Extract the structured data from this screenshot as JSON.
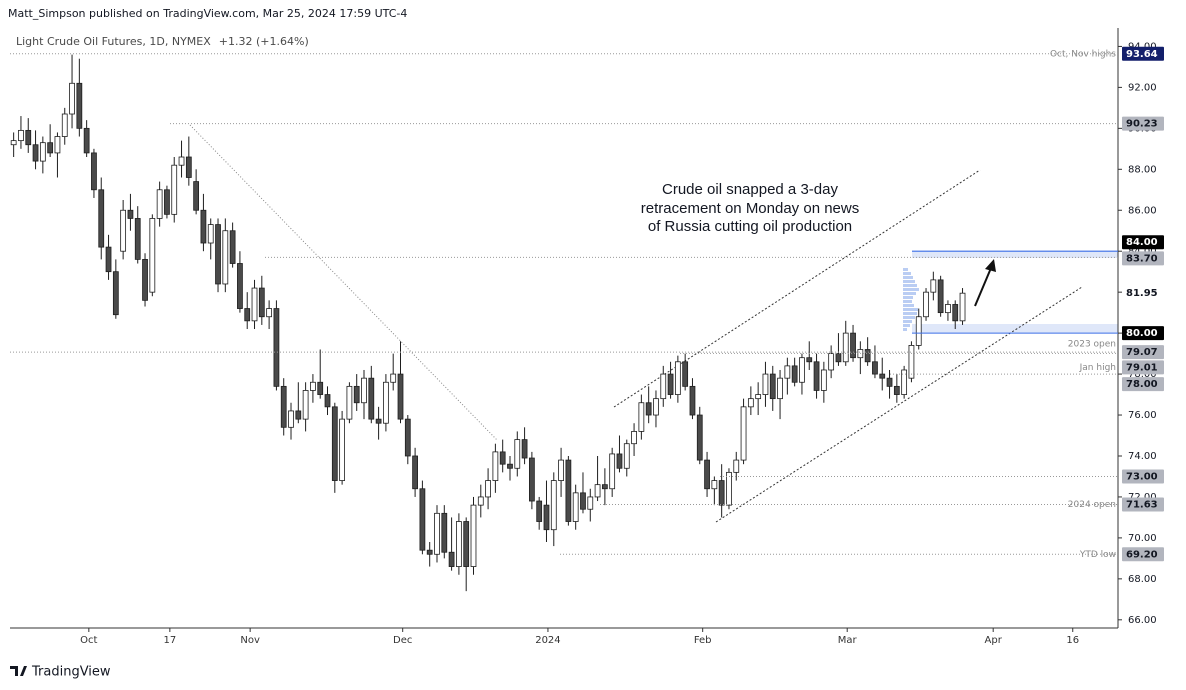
{
  "header": "Matt_Simpson published on TradingView.com, Mar 25, 2024 17:59 UTC-4",
  "footer": "TradingView",
  "chart_data": {
    "type": "candlestick",
    "title": "Light Crude Oil Futures, 1D, NYMEX",
    "change": "+1.32 (+1.64%)",
    "annotation": [
      "Crude oil snapped a 3-day",
      "retracement on Monday on news",
      "of Russia cutting oil production"
    ],
    "up_color": "#ffffff",
    "down_color": "#4a4a4a",
    "border_color": "#1e1e1e",
    "ylim": [
      65.6,
      94.9
    ],
    "yticks": [
      {
        "value": 66,
        "label": "66.00"
      },
      {
        "value": 68,
        "label": "68.00"
      },
      {
        "value": 70,
        "label": "70.00"
      },
      {
        "value": 72,
        "label": "72.00"
      },
      {
        "value": 74,
        "label": "74.00"
      },
      {
        "value": 76,
        "label": "76.00"
      },
      {
        "value": 78,
        "label": "78.00"
      },
      {
        "value": 80,
        "label": "80.00"
      },
      {
        "value": 82,
        "label": "82.00"
      },
      {
        "value": 84,
        "label": "84.00"
      },
      {
        "value": 86,
        "label": "86.00"
      },
      {
        "value": 88,
        "label": "88.00"
      },
      {
        "value": 90,
        "label": "90.00"
      },
      {
        "value": 92,
        "label": "92.00"
      },
      {
        "value": 94,
        "label": "94.00"
      }
    ],
    "xlim": [
      -0.5,
      151.3
    ],
    "xticks": [
      {
        "value": 10.3,
        "label": "Oct"
      },
      {
        "value": 21.4,
        "label": "17"
      },
      {
        "value": 32.4,
        "label": "Nov"
      },
      {
        "value": 53.3,
        "label": "Dec"
      },
      {
        "value": 73.2,
        "label": "2024"
      },
      {
        "value": 94.4,
        "label": "Feb"
      },
      {
        "value": 114.2,
        "label": "Mar"
      },
      {
        "value": 134.2,
        "label": "Apr"
      },
      {
        "value": 145.1,
        "label": "16"
      }
    ],
    "levels": [
      {
        "value": 93.64,
        "label": "93.64",
        "note": "Oct, Nov highs",
        "color": "#131f6b"
      },
      {
        "value": 90.23,
        "label": "90.23",
        "color": "#b2b5be"
      },
      {
        "value": 84.0,
        "label": "84.00",
        "color": "#000000"
      },
      {
        "value": 83.7,
        "label": "83.70",
        "color": "#b2b5be"
      },
      {
        "value": 81.95,
        "label": "81.95",
        "color": "#ffffff"
      },
      {
        "value": 80.0,
        "label": "80.00",
        "color": "#000000"
      },
      {
        "value": 79.07,
        "label": "79.07",
        "note": "2023 open",
        "color": "#b2b5be"
      },
      {
        "value": 79.01,
        "label": "79.01",
        "note": "Jan high",
        "color": "#b2b5be"
      },
      {
        "value": 78.0,
        "label": "78.00",
        "color": "#b2b5be"
      },
      {
        "value": 73.0,
        "label": "73.00",
        "color": "#b2b5be"
      },
      {
        "value": 71.63,
        "label": "71.63",
        "note": "2024 open",
        "color": "#b2b5be"
      },
      {
        "value": 69.2,
        "label": "69.20",
        "note": "YTD low",
        "color": "#b2b5be"
      }
    ],
    "ohlc": [
      [
        89.2,
        89.8,
        88.6,
        89.4
      ],
      [
        89.4,
        90.6,
        89.0,
        89.9
      ],
      [
        89.9,
        90.5,
        88.8,
        89.2
      ],
      [
        89.2,
        89.9,
        88.0,
        88.4
      ],
      [
        88.4,
        89.6,
        87.8,
        89.3
      ],
      [
        89.3,
        90.2,
        88.6,
        88.8
      ],
      [
        88.8,
        89.8,
        87.6,
        89.6
      ],
      [
        89.6,
        91.0,
        89.2,
        90.7
      ],
      [
        90.7,
        93.6,
        90.0,
        92.2
      ],
      [
        92.2,
        93.4,
        89.6,
        90.0
      ],
      [
        90.0,
        90.4,
        88.6,
        88.8
      ],
      [
        88.8,
        89.0,
        86.6,
        87.0
      ],
      [
        87.0,
        87.6,
        83.6,
        84.2
      ],
      [
        84.2,
        84.8,
        82.6,
        83.0
      ],
      [
        83.0,
        83.6,
        80.7,
        80.9
      ],
      [
        84.0,
        86.5,
        83.6,
        86.0
      ],
      [
        86.0,
        86.8,
        85.0,
        85.6
      ],
      [
        85.6,
        86.2,
        83.4,
        83.6
      ],
      [
        83.6,
        83.9,
        81.3,
        81.6
      ],
      [
        82.0,
        85.8,
        81.8,
        85.6
      ],
      [
        85.6,
        87.4,
        85.2,
        87.0
      ],
      [
        87.0,
        87.2,
        85.6,
        85.8
      ],
      [
        85.8,
        88.6,
        85.4,
        88.2
      ],
      [
        88.2,
        89.4,
        87.6,
        88.6
      ],
      [
        88.6,
        89.6,
        87.2,
        87.6
      ],
      [
        87.4,
        88.0,
        85.8,
        86.0
      ],
      [
        86.0,
        86.8,
        84.0,
        84.4
      ],
      [
        84.4,
        85.6,
        83.6,
        85.3
      ],
      [
        85.3,
        85.6,
        82.0,
        82.4
      ],
      [
        82.4,
        85.6,
        82.0,
        85.0
      ],
      [
        85.0,
        85.4,
        83.2,
        83.4
      ],
      [
        83.4,
        84.0,
        81.0,
        81.2
      ],
      [
        81.2,
        82.0,
        80.2,
        80.6
      ],
      [
        80.6,
        82.6,
        80.2,
        82.2
      ],
      [
        82.2,
        82.8,
        80.4,
        80.8
      ],
      [
        80.8,
        81.6,
        80.2,
        81.2
      ],
      [
        81.2,
        81.6,
        77.2,
        77.4
      ],
      [
        77.4,
        77.8,
        75.0,
        75.4
      ],
      [
        75.4,
        76.6,
        74.8,
        76.2
      ],
      [
        76.2,
        77.6,
        75.6,
        75.8
      ],
      [
        75.8,
        77.6,
        75.2,
        77.2
      ],
      [
        77.2,
        78.0,
        76.6,
        77.6
      ],
      [
        77.6,
        79.2,
        76.8,
        77.0
      ],
      [
        77.0,
        77.4,
        76.0,
        76.4
      ],
      [
        76.4,
        76.6,
        72.2,
        72.8
      ],
      [
        72.8,
        76.2,
        72.6,
        75.8
      ],
      [
        75.8,
        77.6,
        75.6,
        77.4
      ],
      [
        77.4,
        78.0,
        76.2,
        76.6
      ],
      [
        76.6,
        78.2,
        75.8,
        77.8
      ],
      [
        77.8,
        78.4,
        75.6,
        75.8
      ],
      [
        75.8,
        76.4,
        74.8,
        75.6
      ],
      [
        75.6,
        78.0,
        75.2,
        77.6
      ],
      [
        77.6,
        79.0,
        77.2,
        78.0
      ],
      [
        78.0,
        79.6,
        75.6,
        75.8
      ],
      [
        75.8,
        76.0,
        73.6,
        74.0
      ],
      [
        74.0,
        74.4,
        72.0,
        72.4
      ],
      [
        72.4,
        72.8,
        69.2,
        69.4
      ],
      [
        69.4,
        69.8,
        68.6,
        69.2
      ],
      [
        69.2,
        71.6,
        68.8,
        71.2
      ],
      [
        71.2,
        71.6,
        69.0,
        69.3
      ],
      [
        69.3,
        71.0,
        68.4,
        68.6
      ],
      [
        68.6,
        71.2,
        68.2,
        70.8
      ],
      [
        70.8,
        71.0,
        67.4,
        68.6
      ],
      [
        68.6,
        72.0,
        68.2,
        71.6
      ],
      [
        71.6,
        72.6,
        71.0,
        72.0
      ],
      [
        72.0,
        73.4,
        71.4,
        72.8
      ],
      [
        72.8,
        74.6,
        72.2,
        74.2
      ],
      [
        74.2,
        74.8,
        73.2,
        73.6
      ],
      [
        73.6,
        74.0,
        72.8,
        73.4
      ],
      [
        73.4,
        75.2,
        73.0,
        74.8
      ],
      [
        74.8,
        75.4,
        73.6,
        73.9
      ],
      [
        73.9,
        74.2,
        71.4,
        71.8
      ],
      [
        71.8,
        72.0,
        70.4,
        70.8
      ],
      [
        71.6,
        72.8,
        69.8,
        70.4
      ],
      [
        70.4,
        73.2,
        69.6,
        72.8
      ],
      [
        72.8,
        74.4,
        72.0,
        73.8
      ],
      [
        73.8,
        74.0,
        70.6,
        70.8
      ],
      [
        70.8,
        72.6,
        70.4,
        72.2
      ],
      [
        72.2,
        73.2,
        71.2,
        71.4
      ],
      [
        71.4,
        72.4,
        70.8,
        72.0
      ],
      [
        72.0,
        74.0,
        71.8,
        72.6
      ],
      [
        72.6,
        73.4,
        71.6,
        72.4
      ],
      [
        72.4,
        74.4,
        72.0,
        74.1
      ],
      [
        74.1,
        75.0,
        73.2,
        73.4
      ],
      [
        73.4,
        74.8,
        73.0,
        74.6
      ],
      [
        74.6,
        75.6,
        74.0,
        75.2
      ],
      [
        75.2,
        77.0,
        74.8,
        76.6
      ],
      [
        76.6,
        77.4,
        75.6,
        76.0
      ],
      [
        76.0,
        77.2,
        75.4,
        76.8
      ],
      [
        76.8,
        78.4,
        76.4,
        78.0
      ],
      [
        78.0,
        78.6,
        76.8,
        77.0
      ],
      [
        77.0,
        78.9,
        76.6,
        78.6
      ],
      [
        78.6,
        79.0,
        77.2,
        77.4
      ],
      [
        77.4,
        77.8,
        75.8,
        76.0
      ],
      [
        76.0,
        76.4,
        73.6,
        73.8
      ],
      [
        73.8,
        74.2,
        72.0,
        72.4
      ],
      [
        72.4,
        73.0,
        71.6,
        72.8
      ],
      [
        72.8,
        73.6,
        71.0,
        71.6
      ],
      [
        71.6,
        73.4,
        71.4,
        73.2
      ],
      [
        73.2,
        74.2,
        72.8,
        73.8
      ],
      [
        73.8,
        76.8,
        73.6,
        76.4
      ],
      [
        76.4,
        77.4,
        76.0,
        76.8
      ],
      [
        76.8,
        77.6,
        76.0,
        77.0
      ],
      [
        77.0,
        78.6,
        76.4,
        78.0
      ],
      [
        78.0,
        78.4,
        76.2,
        76.8
      ],
      [
        76.8,
        78.2,
        75.8,
        77.8
      ],
      [
        77.8,
        78.8,
        77.0,
        78.4
      ],
      [
        78.4,
        78.8,
        77.4,
        77.6
      ],
      [
        77.6,
        79.0,
        77.0,
        78.8
      ],
      [
        78.8,
        79.6,
        78.2,
        78.6
      ],
      [
        78.6,
        79.0,
        76.8,
        77.2
      ],
      [
        77.2,
        78.6,
        76.6,
        78.2
      ],
      [
        78.2,
        79.4,
        77.8,
        79.0
      ],
      [
        79.0,
        80.0,
        78.4,
        78.6
      ],
      [
        78.6,
        80.6,
        78.4,
        80.0
      ],
      [
        80.0,
        80.4,
        78.6,
        78.8
      ],
      [
        78.8,
        79.6,
        78.0,
        79.2
      ],
      [
        79.2,
        79.8,
        78.4,
        78.6
      ],
      [
        78.6,
        79.4,
        77.8,
        78.0
      ],
      [
        78.0,
        78.8,
        77.2,
        77.8
      ],
      [
        77.8,
        78.2,
        76.8,
        77.4
      ],
      [
        77.4,
        78.0,
        76.6,
        77.0
      ],
      [
        77.0,
        78.4,
        76.8,
        78.2
      ],
      [
        77.8,
        79.6,
        77.6,
        79.4
      ],
      [
        79.4,
        81.2,
        79.2,
        80.8
      ],
      [
        80.8,
        82.2,
        80.6,
        82.0
      ],
      [
        82.0,
        83.0,
        81.6,
        82.6
      ],
      [
        82.6,
        82.8,
        80.8,
        81.0
      ],
      [
        81.0,
        81.6,
        80.6,
        81.4
      ],
      [
        81.4,
        81.6,
        80.2,
        80.6
      ],
      [
        80.6,
        82.2,
        80.4,
        81.95
      ]
    ]
  }
}
